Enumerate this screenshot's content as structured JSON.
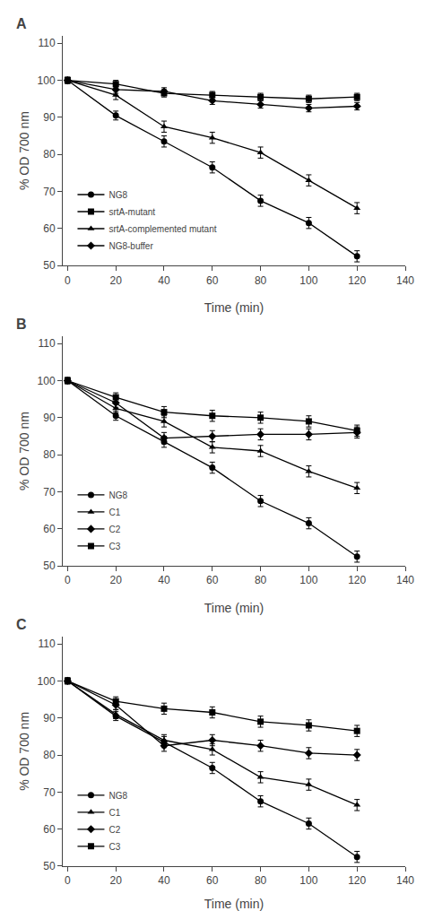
{
  "chart_data": [
    {
      "type": "line",
      "title": "A",
      "xlabel": "Time (min)",
      "ylabel": "% OD 700 nm",
      "x": [
        0,
        20,
        40,
        60,
        80,
        100,
        120
      ],
      "series": [
        {
          "name": "NG8",
          "color": "black",
          "marker": "circle",
          "values": [
            100,
            90.5,
            83.5,
            76.5,
            67.5,
            61.5,
            52.5
          ],
          "yerr": [
            0.8,
            1.2,
            1.5,
            1.5,
            1.5,
            1.5,
            1.5
          ]
        },
        {
          "name": "srtA-mutant",
          "color": "black",
          "marker": "square",
          "values": [
            100,
            99.0,
            96.5,
            96.0,
            95.5,
            95.0,
            95.5
          ],
          "yerr": [
            0.8,
            1.0,
            1.0,
            1.0,
            1.0,
            1.0,
            1.0
          ]
        },
        {
          "name": "srtA-complemented mutant",
          "color": "black",
          "marker": "triangle",
          "values": [
            100,
            96.0,
            87.5,
            84.5,
            80.5,
            73.0,
            65.5
          ],
          "yerr": [
            0.8,
            1.2,
            1.5,
            1.5,
            1.5,
            1.5,
            1.5
          ]
        },
        {
          "name": "NG8-buffer",
          "color": "black",
          "marker": "diamond",
          "values": [
            100,
            97.5,
            97.0,
            94.5,
            93.5,
            92.5,
            93.0
          ],
          "yerr": [
            0.8,
            1.0,
            1.0,
            1.0,
            1.0,
            1.0,
            1.0
          ]
        }
      ],
      "xlim": [
        -2,
        140
      ],
      "ylim": [
        50,
        112
      ],
      "xticks": [
        0,
        20,
        40,
        60,
        80,
        100,
        120,
        140
      ],
      "yticks": [
        50,
        60,
        70,
        80,
        90,
        100,
        110
      ],
      "grid": false,
      "legend": "lower left"
    },
    {
      "type": "line",
      "title": "B",
      "xlabel": "Time (min)",
      "ylabel": "% OD 700 nm",
      "x": [
        0,
        20,
        40,
        60,
        80,
        100,
        120
      ],
      "series": [
        {
          "name": "NG8",
          "color": "black",
          "marker": "circle",
          "values": [
            100,
            90.5,
            83.5,
            76.5,
            67.5,
            61.5,
            52.5
          ],
          "yerr": [
            0.8,
            1.2,
            1.5,
            1.5,
            1.5,
            1.5,
            1.5
          ]
        },
        {
          "name": "C1",
          "color": "black",
          "marker": "triangle",
          "values": [
            100,
            92.5,
            89.0,
            82.0,
            81.0,
            75.5,
            71.0
          ],
          "yerr": [
            0.8,
            1.2,
            1.5,
            1.5,
            1.5,
            1.5,
            1.5
          ]
        },
        {
          "name": "C2",
          "color": "black",
          "marker": "diamond",
          "values": [
            100,
            94.0,
            84.5,
            85.0,
            85.5,
            85.5,
            86.0
          ],
          "yerr": [
            0.8,
            1.2,
            1.5,
            1.5,
            1.5,
            1.5,
            1.5
          ]
        },
        {
          "name": "C3",
          "color": "black",
          "marker": "square",
          "values": [
            100,
            95.5,
            91.5,
            90.5,
            90.0,
            89.0,
            86.5
          ],
          "yerr": [
            0.8,
            1.2,
            1.5,
            1.5,
            1.5,
            1.5,
            1.5
          ]
        }
      ],
      "xlim": [
        -2,
        140
      ],
      "ylim": [
        50,
        112
      ],
      "xticks": [
        0,
        20,
        40,
        60,
        80,
        100,
        120,
        140
      ],
      "yticks": [
        50,
        60,
        70,
        80,
        90,
        100,
        110
      ],
      "grid": false,
      "legend": "lower left"
    },
    {
      "type": "line",
      "title": "C",
      "xlabel": "Time (min)",
      "ylabel": "% OD 700 nm",
      "x": [
        0,
        20,
        40,
        60,
        80,
        100,
        120
      ],
      "series": [
        {
          "name": "NG8",
          "color": "black",
          "marker": "circle",
          "values": [
            100,
            90.5,
            83.5,
            76.5,
            67.5,
            61.5,
            52.5
          ],
          "yerr": [
            0.8,
            1.2,
            1.5,
            1.5,
            1.5,
            1.5,
            1.5
          ]
        },
        {
          "name": "C1",
          "color": "black",
          "marker": "triangle",
          "values": [
            100,
            91.0,
            84.0,
            81.5,
            74.0,
            72.0,
            66.5
          ],
          "yerr": [
            0.8,
            1.2,
            1.5,
            1.5,
            1.5,
            1.5,
            1.5
          ]
        },
        {
          "name": "C2",
          "color": "black",
          "marker": "diamond",
          "values": [
            100,
            93.5,
            82.5,
            84.0,
            82.5,
            80.5,
            80.0
          ],
          "yerr": [
            0.8,
            1.2,
            1.5,
            1.5,
            1.5,
            1.5,
            1.5
          ]
        },
        {
          "name": "C3",
          "color": "black",
          "marker": "square",
          "values": [
            100,
            94.5,
            92.5,
            91.5,
            89.0,
            88.0,
            86.5
          ],
          "yerr": [
            0.8,
            1.2,
            1.5,
            1.5,
            1.5,
            1.5,
            1.5
          ]
        }
      ],
      "xlim": [
        -2,
        140
      ],
      "ylim": [
        50,
        112
      ],
      "xticks": [
        0,
        20,
        40,
        60,
        80,
        100,
        120,
        140
      ],
      "yticks": [
        50,
        60,
        70,
        80,
        90,
        100,
        110
      ],
      "grid": false,
      "legend": "lower left"
    }
  ]
}
